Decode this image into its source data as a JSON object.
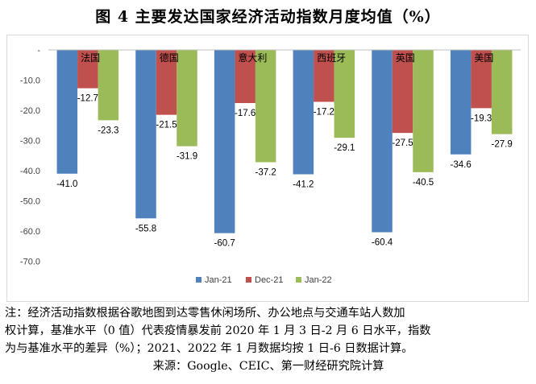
{
  "title": "图 4 主要发达国家经济活动指数月度均值（%）",
  "note_lines": [
    "注：经济活动指数根据谷歌地图到达零售休闲场所、办公地点与交通车站人数加",
    "权计算，基准水平（0 值）代表疫情暴发前 2020 年 1 月 3 日-2 月 6 日水平，指数",
    "为与基准水平的差异（%）；2021、2022 年 1 月数据均按 1 日-6 日数据计算。"
  ],
  "source": "来源：Google、CEIC、第一财经研究院计算",
  "chart_data": {
    "type": "bar",
    "categories": [
      "法国",
      "德国",
      "意大利",
      "西班牙",
      "英国",
      "美国"
    ],
    "series": [
      {
        "name": "Jan-21",
        "color": "#4F81BD",
        "values": [
          -41.0,
          -55.8,
          -60.7,
          -41.2,
          -60.4,
          -34.6
        ],
        "labels": [
          "-41.0",
          "-55.8",
          "-60.7",
          "-41.2",
          "-60.4",
          "-34.6"
        ]
      },
      {
        "name": "Dec-21",
        "color": "#C0504D",
        "values": [
          -12.7,
          -21.5,
          -17.6,
          -17.2,
          -27.5,
          -19.3
        ],
        "labels": [
          "-12.7",
          "-21.5",
          "-17.6",
          "-17.2",
          "-27.5",
          "-19.3"
        ]
      },
      {
        "name": "Jan-22",
        "color": "#9BBB59",
        "values": [
          -23.3,
          -31.9,
          -37.2,
          -29.1,
          -40.5,
          -27.9
        ],
        "labels": [
          "-23.3",
          "-31.9",
          "-37.2",
          "-29.1",
          "-40.5",
          "-27.9"
        ]
      }
    ],
    "ylim": [
      -70,
      0
    ],
    "yticks": [
      0,
      -10,
      -20,
      -30,
      -40,
      -50,
      -60,
      -70
    ],
    "ytick_labels": [
      "-",
      "-10.0",
      "-20.0",
      "-30.0",
      "-40.0",
      "-50.0",
      "-60.0",
      "-70.0"
    ],
    "legend_position": "bottom",
    "grid": false
  }
}
